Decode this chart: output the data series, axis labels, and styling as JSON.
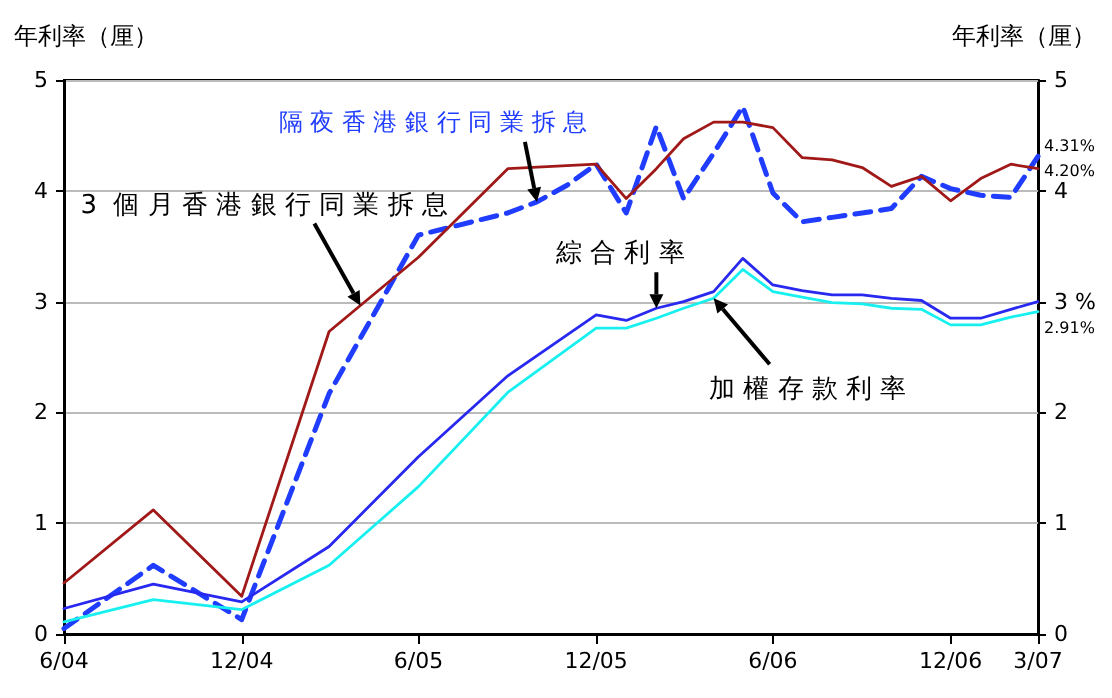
{
  "chart_data": {
    "type": "line",
    "ylabel": "年利率（厘）",
    "y2label": "年利率（厘）",
    "xlim": [
      "2004-06",
      "2007-03"
    ],
    "xticks": [
      {
        "value": "2004-06",
        "label": "6/04"
      },
      {
        "value": "2004-12",
        "label": "12/04"
      },
      {
        "value": "2005-06",
        "label": "6/05"
      },
      {
        "value": "2005-12",
        "label": "12/05"
      },
      {
        "value": "2006-06",
        "label": "6/06"
      },
      {
        "value": "2006-12",
        "label": "12/06"
      },
      {
        "value": "2007-03",
        "label": "3/07"
      }
    ],
    "ylim": [
      0,
      5
    ],
    "yticks": [
      0,
      1,
      2,
      3,
      4,
      5
    ],
    "y2lim": [
      0,
      5
    ],
    "y2ticks": [
      0,
      1,
      2,
      {
        "value": 3,
        "label": "3 %"
      },
      4,
      5
    ],
    "grid": "y",
    "marker": "none",
    "series": [
      {
        "name": "隔夜香港銀行同業拆息",
        "color": "#1f3cff",
        "line_style": "dashed",
        "x": [
          "2004-06",
          "2004-09",
          "2004-12",
          "2005-03",
          "2005-06",
          "2005-09",
          "2005-10",
          "2005-11",
          "2005-12",
          "2006-01",
          "2006-02",
          "2006-03",
          "2006-04",
          "2006-05",
          "2006-06",
          "2006-07",
          "2006-08",
          "2006-09",
          "2006-10",
          "2006-11",
          "2006-12",
          "2007-01",
          "2007-02",
          "2007-03"
        ],
        "values": [
          0.05,
          0.62,
          0.13,
          2.17,
          3.6,
          3.8,
          3.9,
          4.05,
          4.24,
          3.8,
          4.58,
          3.93,
          4.34,
          4.76,
          3.98,
          3.72,
          3.76,
          3.8,
          3.84,
          4.13,
          4.02,
          3.96,
          3.94,
          4.31
        ]
      },
      {
        "name": "3 個月香港銀行同業拆息",
        "color": "#a01818",
        "line_style": "solid",
        "x": [
          "2004-06",
          "2004-09",
          "2004-12",
          "2005-03",
          "2005-06",
          "2005-09",
          "2005-12",
          "2006-01",
          "2006-02",
          "2006-03",
          "2006-04",
          "2006-05",
          "2006-06",
          "2006-07",
          "2006-08",
          "2006-09",
          "2006-10",
          "2006-11",
          "2006-12",
          "2007-01",
          "2007-02",
          "2007-03"
        ],
        "values": [
          0.46,
          1.12,
          0.34,
          2.73,
          3.4,
          4.2,
          4.24,
          3.93,
          4.2,
          4.47,
          4.62,
          4.62,
          4.57,
          4.3,
          4.28,
          4.21,
          4.04,
          4.13,
          3.91,
          4.11,
          4.24,
          4.2
        ]
      },
      {
        "name": "綜合利率",
        "color": "#2828f0",
        "line_style": "solid",
        "x": [
          "2004-06",
          "2004-09",
          "2004-12",
          "2005-03",
          "2005-06",
          "2005-09",
          "2005-12",
          "2006-01",
          "2006-02",
          "2006-03",
          "2006-04",
          "2006-05",
          "2006-06",
          "2006-07",
          "2006-08",
          "2006-09",
          "2006-10",
          "2006-11",
          "2006-12",
          "2007-01",
          "2007-02",
          "2007-03"
        ],
        "values": [
          0.23,
          0.45,
          0.29,
          0.79,
          1.6,
          2.33,
          2.88,
          2.83,
          2.94,
          3.0,
          3.09,
          3.39,
          3.15,
          3.1,
          3.06,
          3.06,
          3.03,
          3.01,
          2.85,
          2.85,
          2.93,
          3.0
        ]
      },
      {
        "name": "加權存款利率",
        "color": "#18f0f0",
        "line_style": "solid",
        "x": [
          "2004-06",
          "2004-09",
          "2004-12",
          "2005-03",
          "2005-06",
          "2005-09",
          "2005-12",
          "2006-01",
          "2006-02",
          "2006-03",
          "2006-04",
          "2006-05",
          "2006-06",
          "2006-07",
          "2006-08",
          "2006-09",
          "2006-10",
          "2006-11",
          "2006-12",
          "2007-01",
          "2007-02",
          "2007-03"
        ],
        "values": [
          0.11,
          0.31,
          0.22,
          0.62,
          1.33,
          2.18,
          2.76,
          2.76,
          2.85,
          2.94,
          3.03,
          3.29,
          3.09,
          3.04,
          2.99,
          2.98,
          2.94,
          2.93,
          2.79,
          2.79,
          2.86,
          2.91
        ]
      }
    ],
    "annotations": [
      {
        "text": "4.31%",
        "x": "2007-03",
        "y": 4.31
      },
      {
        "text": "4.20%",
        "x": "2007-03",
        "y": 4.2
      },
      {
        "text": "2.91%",
        "x": "2007-03",
        "y": 2.91
      }
    ]
  }
}
